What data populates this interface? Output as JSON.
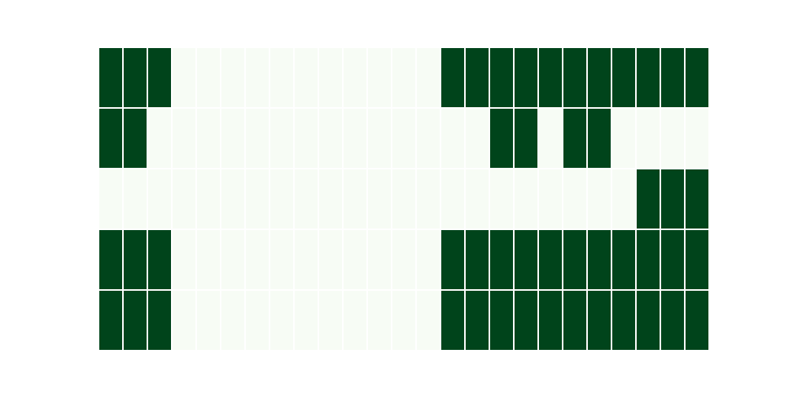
{
  "chart_data": {
    "type": "heatmap",
    "title": "",
    "xlabel": "",
    "ylabel": "",
    "value_range": [
      0,
      1
    ],
    "colors": {
      "low": "#f7fcf5",
      "high": "#00441b",
      "cell_border": "#ffffff",
      "background": "#ffffff"
    },
    "grid": false,
    "legend": "none",
    "matrix": [
      [
        1,
        1,
        1,
        0,
        0,
        0,
        0,
        0,
        0,
        0,
        0,
        0,
        0,
        0,
        1,
        1,
        1,
        1,
        1,
        1,
        1,
        1,
        1,
        1,
        1
      ],
      [
        1,
        1,
        0,
        0,
        0,
        0,
        0,
        0,
        0,
        0,
        0,
        0,
        0,
        0,
        0,
        0,
        1,
        1,
        0,
        1,
        1,
        0,
        0,
        0,
        0
      ],
      [
        0,
        0,
        0,
        0,
        0,
        0,
        0,
        0,
        0,
        0,
        0,
        0,
        0,
        0,
        0,
        0,
        0,
        0,
        0,
        0,
        0,
        0,
        1,
        1,
        1
      ],
      [
        1,
        1,
        1,
        0,
        0,
        0,
        0,
        0,
        0,
        0,
        0,
        0,
        0,
        0,
        1,
        1,
        1,
        1,
        1,
        1,
        1,
        1,
        1,
        1,
        1
      ],
      [
        1,
        1,
        1,
        0,
        0,
        0,
        0,
        0,
        0,
        0,
        0,
        0,
        0,
        0,
        1,
        1,
        1,
        1,
        1,
        1,
        1,
        1,
        1,
        1,
        1
      ]
    ]
  }
}
